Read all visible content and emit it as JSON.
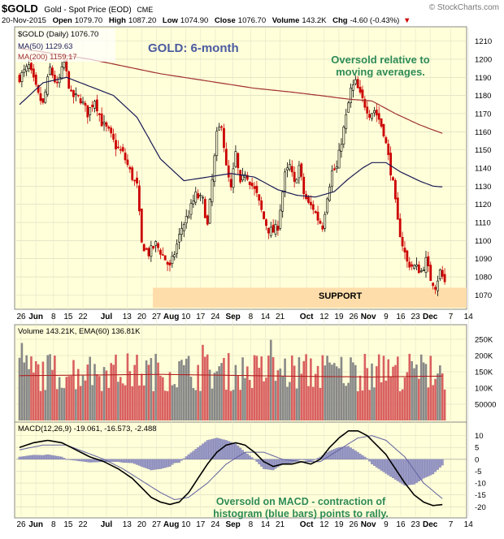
{
  "header": {
    "symbol": "$GOLD",
    "name": "Gold - Spot Price (EOD)",
    "exchange": "CME",
    "watermark": "© StockCharts.com",
    "date": "20-Nov-2015",
    "open_label": "Open",
    "open": "1079.70",
    "high_label": "High",
    "high": "1087.20",
    "low_label": "Low",
    "low": "1074.90",
    "close_label": "Close",
    "close": "1076.70",
    "volume_label": "Volume",
    "volume": "143.2K",
    "chg_label": "Chg",
    "chg": "-4.60 (-0.43%)",
    "chg_arrow": "▼"
  },
  "colors": {
    "panel_bg": "#FFFFD9",
    "border": "#888888",
    "candle_up": "#000000",
    "candle_down": "#CC0000",
    "ma50": "#1A1A55",
    "ma200": "#A03030",
    "support": "#FFDDAA",
    "vol_up": "#888888",
    "vol_down": "#D96060",
    "macd": "#000000",
    "signal": "#6060A0",
    "hist": "#9A9AC8",
    "annotation": "#2E8B57",
    "title": "#4A5AA0"
  },
  "chart_data": [
    {
      "type": "candlestick",
      "legend": [
        {
          "text": "$GOLD (Daily) 1076.70",
          "color": "#000000"
        },
        {
          "text": "MA(50) 1129.63",
          "color": "#1A1A55"
        },
        {
          "text": "MA(200) 1159.17",
          "color": "#A03030"
        }
      ],
      "title": "GOLD: 6-month",
      "annotation": [
        "Oversold relative to",
        "moving  averages."
      ],
      "support_label": "SUPPORT",
      "support_range": [
        1063,
        1074
      ],
      "ylim": [
        1063,
        1217
      ],
      "yticks": [
        1070,
        1080,
        1090,
        1100,
        1110,
        1120,
        1130,
        1140,
        1150,
        1160,
        1170,
        1180,
        1190,
        1200,
        1210
      ],
      "waypoints": [
        [
          0,
          1190
        ],
        [
          4,
          1196
        ],
        [
          8,
          1180
        ],
        [
          10,
          1175
        ],
        [
          13,
          1195
        ],
        [
          16,
          1185
        ],
        [
          19,
          1198
        ],
        [
          22,
          1180
        ],
        [
          26,
          1178
        ],
        [
          29,
          1170
        ],
        [
          32,
          1178
        ],
        [
          35,
          1165
        ],
        [
          38,
          1160
        ],
        [
          41,
          1152
        ],
        [
          44,
          1148
        ],
        [
          48,
          1135
        ],
        [
          50,
          1130
        ],
        [
          52,
          1098
        ],
        [
          55,
          1093
        ],
        [
          58,
          1098
        ],
        [
          61,
          1092
        ],
        [
          64,
          1085
        ],
        [
          66,
          1093
        ],
        [
          69,
          1107
        ],
        [
          72,
          1115
        ],
        [
          75,
          1125
        ],
        [
          78,
          1122
        ],
        [
          80,
          1108
        ],
        [
          82,
          1133
        ],
        [
          84,
          1158
        ],
        [
          86,
          1165
        ],
        [
          88,
          1140
        ],
        [
          90,
          1128
        ],
        [
          92,
          1148
        ],
        [
          94,
          1130
        ],
        [
          96,
          1138
        ],
        [
          98,
          1133
        ],
        [
          101,
          1125
        ],
        [
          104,
          1112
        ],
        [
          106,
          1106
        ],
        [
          108,
          1105
        ],
        [
          110,
          1108
        ],
        [
          111,
          1118
        ],
        [
          113,
          1136
        ],
        [
          115,
          1141
        ],
        [
          117,
          1131
        ],
        [
          119,
          1141
        ],
        [
          121,
          1126
        ],
        [
          123,
          1120
        ],
        [
          125,
          1118
        ],
        [
          127,
          1112
        ],
        [
          129,
          1108
        ],
        [
          131,
          1125
        ],
        [
          133,
          1138
        ],
        [
          135,
          1140
        ],
        [
          137,
          1155
        ],
        [
          139,
          1168
        ],
        [
          141,
          1183
        ],
        [
          143,
          1187
        ],
        [
          145,
          1180
        ],
        [
          147,
          1175
        ],
        [
          149,
          1170
        ],
        [
          151,
          1172
        ],
        [
          153,
          1167
        ],
        [
          155,
          1160
        ],
        [
          157,
          1146
        ],
        [
          159,
          1131
        ],
        [
          161,
          1110
        ],
        [
          163,
          1098
        ],
        [
          165,
          1088
        ],
        [
          167,
          1086
        ],
        [
          169,
          1085
        ],
        [
          171,
          1083
        ],
        [
          173,
          1089
        ],
        [
          175,
          1079
        ],
        [
          177,
          1075
        ],
        [
          179,
          1083
        ],
        [
          180,
          1080
        ],
        [
          181,
          1077
        ]
      ],
      "ma50": [
        [
          0,
          1175
        ],
        [
          10,
          1187
        ],
        [
          20,
          1190
        ],
        [
          30,
          1185
        ],
        [
          40,
          1180
        ],
        [
          50,
          1168
        ],
        [
          60,
          1145
        ],
        [
          70,
          1133
        ],
        [
          80,
          1135
        ],
        [
          90,
          1137
        ],
        [
          100,
          1135
        ],
        [
          110,
          1128
        ],
        [
          118,
          1125
        ],
        [
          126,
          1124
        ],
        [
          134,
          1127
        ],
        [
          140,
          1134
        ],
        [
          146,
          1140
        ],
        [
          150,
          1143
        ],
        [
          156,
          1143
        ],
        [
          162,
          1138
        ],
        [
          170,
          1133
        ],
        [
          176,
          1130
        ],
        [
          180,
          1129.63
        ]
      ],
      "ma200": [
        [
          0,
          1206
        ],
        [
          15,
          1203
        ],
        [
          30,
          1200
        ],
        [
          45,
          1196
        ],
        [
          60,
          1192
        ],
        [
          75,
          1189
        ],
        [
          90,
          1186
        ],
        [
          100,
          1184
        ],
        [
          115,
          1182
        ],
        [
          128,
          1180
        ],
        [
          140,
          1178
        ],
        [
          150,
          1177
        ],
        [
          160,
          1170
        ],
        [
          170,
          1164
        ],
        [
          176,
          1161
        ],
        [
          180,
          1159.17
        ]
      ]
    },
    {
      "type": "bar",
      "legend": [
        {
          "text": "Volume 143.21K, EMA(60) 136.81K",
          "color": "#000000"
        }
      ],
      "ylim": [
        0,
        290
      ],
      "yticks": [
        {
          "v": 50,
          "label": "50000"
        },
        {
          "v": 100,
          "label": "100K"
        },
        {
          "v": 150,
          "label": "150K"
        },
        {
          "v": 200,
          "label": "200K"
        },
        {
          "v": 250,
          "label": "250K"
        }
      ],
      "ema60": [
        [
          0,
          138
        ],
        [
          30,
          140
        ],
        [
          60,
          142
        ],
        [
          90,
          139
        ],
        [
          120,
          136
        ],
        [
          150,
          134
        ],
        [
          180,
          136.81
        ]
      ]
    },
    {
      "type": "line",
      "legend": [
        {
          "text": "MACD(12,26,9) -19.061, -16.573, -2.488",
          "color": "#000000"
        }
      ],
      "annotation": [
        "Oversold on MACD - contraction of",
        "histogram (blue bars) points to rally."
      ],
      "ylim": [
        -24,
        15
      ],
      "yticks": [
        -20,
        -15,
        -10,
        -5,
        0,
        5,
        10
      ],
      "macd": [
        [
          0,
          5
        ],
        [
          6,
          7
        ],
        [
          12,
          8
        ],
        [
          18,
          7
        ],
        [
          24,
          4
        ],
        [
          30,
          1
        ],
        [
          36,
          -1
        ],
        [
          42,
          -4
        ],
        [
          48,
          -8
        ],
        [
          52,
          -12
        ],
        [
          56,
          -16
        ],
        [
          60,
          -18
        ],
        [
          64,
          -19
        ],
        [
          68,
          -18
        ],
        [
          72,
          -14
        ],
        [
          76,
          -8
        ],
        [
          80,
          -2
        ],
        [
          84,
          3
        ],
        [
          88,
          6
        ],
        [
          92,
          7
        ],
        [
          96,
          6
        ],
        [
          100,
          3
        ],
        [
          104,
          -1
        ],
        [
          108,
          -3
        ],
        [
          112,
          -2
        ],
        [
          116,
          -2
        ],
        [
          120,
          -1
        ],
        [
          124,
          -2
        ],
        [
          128,
          0
        ],
        [
          132,
          5
        ],
        [
          136,
          9
        ],
        [
          140,
          12
        ],
        [
          144,
          12
        ],
        [
          148,
          10
        ],
        [
          152,
          6
        ],
        [
          156,
          2
        ],
        [
          160,
          -4
        ],
        [
          164,
          -10
        ],
        [
          168,
          -15
        ],
        [
          172,
          -18
        ],
        [
          176,
          -19.5
        ],
        [
          180,
          -19.061
        ]
      ],
      "signal": [
        [
          0,
          4
        ],
        [
          10,
          6
        ],
        [
          20,
          6
        ],
        [
          28,
          3
        ],
        [
          36,
          0
        ],
        [
          44,
          -4
        ],
        [
          52,
          -9
        ],
        [
          60,
          -14
        ],
        [
          66,
          -17
        ],
        [
          72,
          -16
        ],
        [
          80,
          -10
        ],
        [
          88,
          -2
        ],
        [
          96,
          3
        ],
        [
          104,
          3
        ],
        [
          112,
          0
        ],
        [
          120,
          -1
        ],
        [
          128,
          -1
        ],
        [
          136,
          4
        ],
        [
          144,
          9
        ],
        [
          150,
          10
        ],
        [
          156,
          8
        ],
        [
          164,
          1
        ],
        [
          172,
          -10
        ],
        [
          180,
          -16.573
        ]
      ],
      "x_labels": [
        {
          "i": 0,
          "label": "26"
        },
        {
          "i": 5,
          "label": "Jun"
        },
        {
          "i": 11,
          "label": "8"
        },
        {
          "i": 16,
          "label": "15"
        },
        {
          "i": 21,
          "label": "22"
        },
        {
          "i": 29,
          "label": "Jul"
        },
        {
          "i": 36,
          "label": "13"
        },
        {
          "i": 41,
          "label": "20"
        },
        {
          "i": 46,
          "label": "27"
        },
        {
          "i": 51,
          "label": "Aug"
        },
        {
          "i": 56,
          "label": "10"
        },
        {
          "i": 61,
          "label": "17"
        },
        {
          "i": 66,
          "label": "24"
        },
        {
          "i": 72,
          "label": "Sep"
        },
        {
          "i": 78,
          "label": "8"
        },
        {
          "i": 83,
          "label": "14"
        },
        {
          "i": 88,
          "label": "21"
        },
        {
          "i": 97,
          "label": "Oct"
        },
        {
          "i": 103,
          "label": "12"
        },
        {
          "i": 108,
          "label": "19"
        },
        {
          "i": 113,
          "label": "26"
        },
        {
          "i": 118,
          "label": "Nov"
        },
        {
          "i": 124,
          "label": "9"
        },
        {
          "i": 129,
          "label": "16"
        },
        {
          "i": 134,
          "label": "23"
        },
        {
          "i": 139,
          "label": "Dec"
        },
        {
          "i": 146,
          "label": "7"
        },
        {
          "i": 152,
          "label": "14"
        }
      ]
    }
  ]
}
